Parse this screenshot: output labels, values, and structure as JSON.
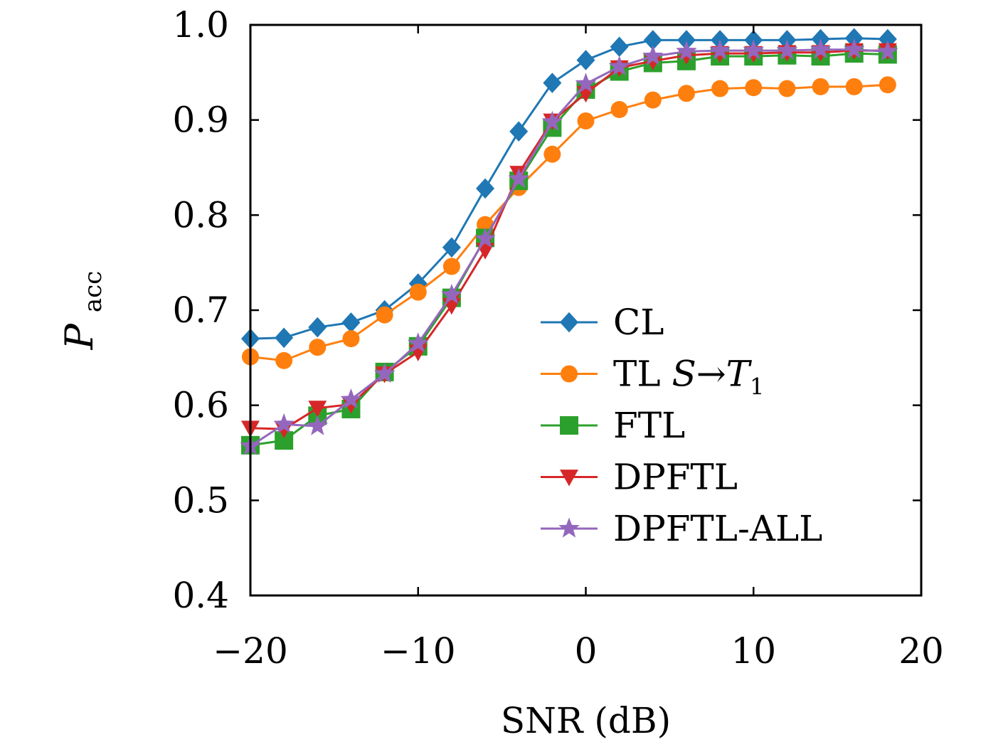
{
  "chart_data": {
    "type": "line",
    "title": "",
    "xlabel": "SNR (dB)",
    "ylabel": {
      "main": "P",
      "sub": "acc"
    },
    "xlim": [
      -20,
      20
    ],
    "ylim": [
      0.4,
      1.0
    ],
    "xticks": [
      -20,
      -10,
      0,
      10,
      20
    ],
    "xtick_labels": [
      "−20",
      "−10",
      "0",
      "10",
      "20"
    ],
    "yticks": [
      0.4,
      0.5,
      0.6,
      0.7,
      0.8,
      0.9,
      1.0
    ],
    "ytick_labels": [
      "0.4",
      "0.5",
      "0.6",
      "0.7",
      "0.8",
      "0.9",
      "1.0"
    ],
    "grid": false,
    "legend_position": "lower-right",
    "x": [
      -20,
      -18,
      -16,
      -14,
      -12,
      -10,
      -8,
      -6,
      -4,
      -2,
      0,
      2,
      4,
      6,
      8,
      10,
      12,
      14,
      16,
      18
    ],
    "series": [
      {
        "name": "CL",
        "color": "#1f77b4",
        "marker": "diamond",
        "values": [
          0.67,
          0.671,
          0.682,
          0.687,
          0.7,
          0.728,
          0.766,
          0.828,
          0.888,
          0.939,
          0.963,
          0.977,
          0.984,
          0.984,
          0.984,
          0.984,
          0.984,
          0.985,
          0.986,
          0.985
        ]
      },
      {
        "name": "TL S→T1",
        "label_parts": {
          "prefix": "TL",
          "from": "S",
          "arrow": "→",
          "to": "T",
          "to_sub": "1"
        },
        "color": "#ff7f0e",
        "marker": "circle",
        "values": [
          0.651,
          0.647,
          0.661,
          0.67,
          0.695,
          0.719,
          0.746,
          0.79,
          0.829,
          0.864,
          0.899,
          0.911,
          0.921,
          0.928,
          0.933,
          0.934,
          0.933,
          0.935,
          0.935,
          0.937
        ]
      },
      {
        "name": "FTL",
        "color": "#2ca02c",
        "marker": "square",
        "values": [
          0.558,
          0.563,
          0.589,
          0.596,
          0.635,
          0.662,
          0.713,
          0.776,
          0.836,
          0.892,
          0.932,
          0.951,
          0.96,
          0.962,
          0.967,
          0.967,
          0.968,
          0.967,
          0.97,
          0.969
        ]
      },
      {
        "name": "DPFTL",
        "color": "#d62728",
        "marker": "triangle-down",
        "values": [
          0.576,
          0.575,
          0.597,
          0.601,
          0.633,
          0.656,
          0.705,
          0.763,
          0.844,
          0.899,
          0.928,
          0.955,
          0.962,
          0.968,
          0.97,
          0.97,
          0.971,
          0.971,
          0.973,
          0.973
        ]
      },
      {
        "name": "DPFTL-ALL",
        "color": "#9467bd",
        "marker": "star",
        "values": [
          0.557,
          0.58,
          0.578,
          0.606,
          0.633,
          0.665,
          0.716,
          0.775,
          0.838,
          0.898,
          0.938,
          0.956,
          0.967,
          0.972,
          0.973,
          0.973,
          0.973,
          0.974,
          0.974,
          0.972
        ]
      }
    ]
  }
}
